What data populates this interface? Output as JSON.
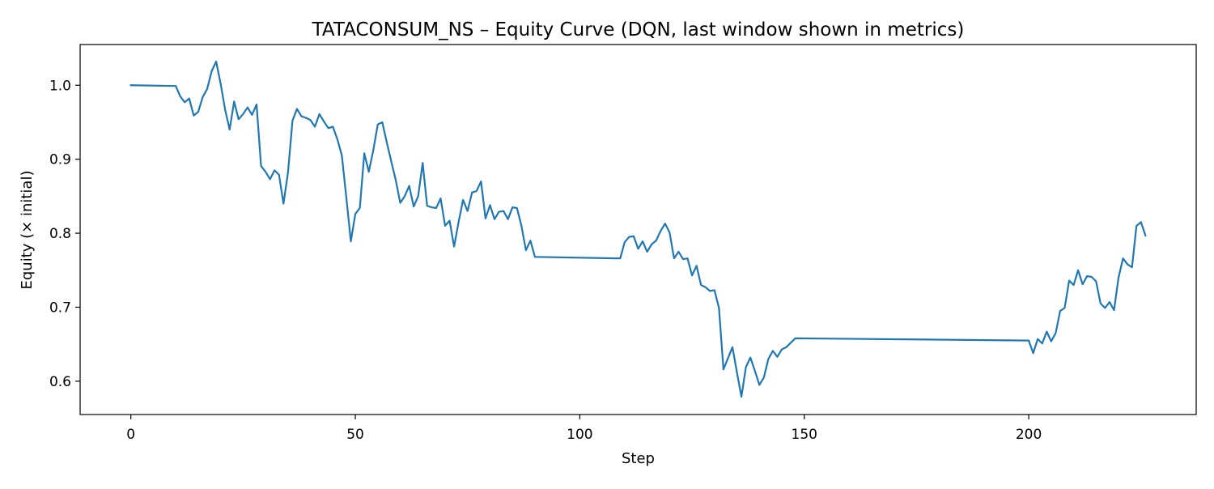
{
  "chart_data": {
    "type": "line",
    "title": "TATACONSUM_NS – Equity Curve (DQN, last window shown in metrics)",
    "xlabel": "Step",
    "ylabel": "Equity (× initial)",
    "xlim": [
      -11.3,
      237.3
    ],
    "ylim": [
      0.555,
      1.055
    ],
    "xticks": [
      0,
      50,
      100,
      150,
      200
    ],
    "xtick_labels": [
      "0",
      "50",
      "100",
      "150",
      "200"
    ],
    "yticks": [
      0.6,
      0.7,
      0.8,
      0.9,
      1.0
    ],
    "ytick_labels": [
      "0.6",
      "0.7",
      "0.8",
      "0.9",
      "1.0"
    ],
    "grid": false,
    "series": [
      {
        "color": "#1f77b4",
        "x": [
          0,
          10,
          11,
          12,
          13,
          14,
          15,
          16,
          17,
          18,
          19,
          20,
          21,
          22,
          23,
          24,
          25,
          26,
          27,
          28,
          29,
          30,
          31,
          32,
          33,
          34,
          35,
          36,
          37,
          38,
          39,
          40,
          41,
          42,
          43,
          44,
          45,
          46,
          47,
          48,
          49,
          50,
          51,
          52,
          53,
          54,
          55,
          56,
          57,
          58,
          59,
          60,
          61,
          62,
          63,
          64,
          65,
          66,
          67,
          68,
          69,
          70,
          71,
          72,
          73,
          74,
          75,
          76,
          77,
          78,
          79,
          80,
          81,
          82,
          83,
          84,
          85,
          86,
          87,
          88,
          89,
          90,
          109,
          110,
          111,
          112,
          113,
          114,
          115,
          116,
          117,
          118,
          119,
          120,
          121,
          122,
          123,
          124,
          125,
          126,
          127,
          128,
          129,
          130,
          131,
          132,
          133,
          134,
          135,
          136,
          137,
          138,
          139,
          140,
          141,
          142,
          143,
          144,
          145,
          146,
          147,
          148,
          200,
          201,
          202,
          203,
          204,
          205,
          206,
          207,
          208,
          209,
          210,
          211,
          212,
          213,
          214,
          215,
          216,
          217,
          218,
          219,
          220,
          221,
          222,
          223,
          224,
          225,
          226
        ],
        "y": [
          1.0,
          0.999,
          0.985,
          0.977,
          0.982,
          0.959,
          0.964,
          0.984,
          0.995,
          1.019,
          1.032,
          1.002,
          0.967,
          0.94,
          0.978,
          0.954,
          0.961,
          0.97,
          0.96,
          0.974,
          0.891,
          0.883,
          0.873,
          0.885,
          0.879,
          0.84,
          0.882,
          0.952,
          0.968,
          0.958,
          0.956,
          0.953,
          0.944,
          0.961,
          0.951,
          0.942,
          0.944,
          0.927,
          0.905,
          0.848,
          0.789,
          0.826,
          0.834,
          0.908,
          0.883,
          0.912,
          0.947,
          0.95,
          0.923,
          0.897,
          0.872,
          0.841,
          0.85,
          0.864,
          0.836,
          0.85,
          0.895,
          0.837,
          0.835,
          0.834,
          0.847,
          0.81,
          0.817,
          0.782,
          0.815,
          0.845,
          0.83,
          0.855,
          0.857,
          0.87,
          0.82,
          0.838,
          0.819,
          0.829,
          0.83,
          0.819,
          0.835,
          0.834,
          0.81,
          0.777,
          0.79,
          0.768,
          0.766,
          0.788,
          0.795,
          0.796,
          0.779,
          0.789,
          0.775,
          0.785,
          0.79,
          0.803,
          0.813,
          0.801,
          0.766,
          0.775,
          0.765,
          0.766,
          0.743,
          0.756,
          0.73,
          0.727,
          0.722,
          0.723,
          0.699,
          0.616,
          0.631,
          0.646,
          0.612,
          0.579,
          0.619,
          0.632,
          0.614,
          0.595,
          0.605,
          0.63,
          0.641,
          0.633,
          0.643,
          0.646,
          0.652,
          0.658,
          0.655,
          0.638,
          0.657,
          0.651,
          0.667,
          0.654,
          0.665,
          0.695,
          0.699,
          0.736,
          0.73,
          0.75,
          0.731,
          0.742,
          0.741,
          0.735,
          0.705,
          0.699,
          0.707,
          0.696,
          0.74,
          0.766,
          0.758,
          0.754,
          0.81,
          0.815,
          0.797
        ]
      }
    ]
  }
}
